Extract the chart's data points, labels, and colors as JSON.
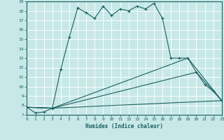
{
  "xlabel": "Humidex (Indice chaleur)",
  "bg_color": "#c8e8e8",
  "line_color": "#1a6060",
  "grid_color": "#ffffff",
  "xlim": [
    0,
    23
  ],
  "ylim": [
    7,
    19
  ],
  "xticks": [
    0,
    1,
    2,
    3,
    4,
    5,
    6,
    7,
    8,
    9,
    10,
    11,
    12,
    13,
    14,
    15,
    16,
    17,
    18,
    19,
    20,
    21,
    22,
    23
  ],
  "yticks": [
    7,
    8,
    9,
    10,
    11,
    12,
    13,
    14,
    15,
    16,
    17,
    18,
    19
  ],
  "series1_x": [
    0,
    1,
    2,
    3,
    4,
    5,
    6,
    7,
    8,
    9,
    10,
    11,
    12,
    13,
    14,
    15,
    16,
    17,
    18,
    19,
    20,
    21,
    22,
    23
  ],
  "series1_y": [
    7.8,
    7.2,
    7.3,
    7.7,
    11.8,
    15.2,
    18.3,
    17.8,
    17.2,
    18.5,
    17.5,
    18.2,
    18.0,
    18.5,
    18.2,
    18.8,
    17.2,
    13.0,
    13.0,
    13.0,
    11.5,
    10.2,
    9.5,
    8.5
  ],
  "series2_x": [
    0,
    3,
    23
  ],
  "series2_y": [
    7.8,
    7.7,
    8.5
  ],
  "series3_x": [
    0,
    3,
    20,
    23
  ],
  "series3_y": [
    7.8,
    7.7,
    11.5,
    8.5
  ],
  "series4_x": [
    0,
    3,
    19,
    23
  ],
  "series4_y": [
    7.8,
    7.7,
    13.0,
    8.5
  ]
}
